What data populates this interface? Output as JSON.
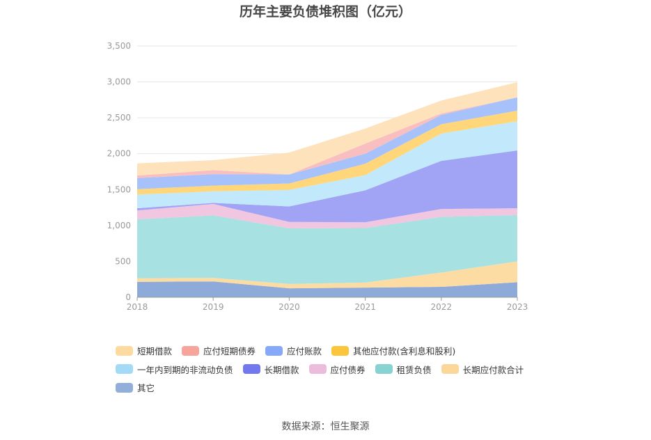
{
  "chart_data": {
    "type": "area",
    "stacked": true,
    "title": "历年主要负债堆积图（亿元）",
    "source": "数据来源：恒生聚源",
    "categories": [
      "2018",
      "2019",
      "2020",
      "2021",
      "2022",
      "2023"
    ],
    "ylim": [
      0,
      3500
    ],
    "yticks": [
      0,
      500,
      1000,
      1500,
      2000,
      2500,
      3000,
      3500
    ],
    "ytick_labels": [
      "0",
      "500",
      "1,000",
      "1,500",
      "2,000",
      "2,500",
      "3,000",
      "3,500"
    ],
    "grid": true,
    "legend_position": "bottom",
    "series": [
      {
        "name": "其它",
        "color": "#8eaad8",
        "values": [
          215,
          220,
          125,
          135,
          145,
          210
        ]
      },
      {
        "name": "长期应付款合计",
        "color": "#fcdca2",
        "values": [
          50,
          50,
          60,
          70,
          200,
          290
        ]
      },
      {
        "name": "租赁负债",
        "color": "#a8e1e1",
        "values": [
          820,
          870,
          775,
          760,
          775,
          645
        ]
      },
      {
        "name": "应付债券",
        "color": "#f0c6e0",
        "values": [
          125,
          160,
          90,
          80,
          110,
          95
        ]
      },
      {
        "name": "长期借款",
        "color": "#a1a4f4",
        "values": [
          30,
          15,
          215,
          445,
          670,
          805
        ]
      },
      {
        "name": "一年内到期的非流动负债",
        "color": "#c2e9fb",
        "values": [
          190,
          160,
          230,
          210,
          380,
          405
        ]
      },
      {
        "name": "其他应付款(含利息和股利)",
        "color": "#ffd77a",
        "values": [
          75,
          80,
          90,
          160,
          130,
          150
        ]
      },
      {
        "name": "应付账款",
        "color": "#a7c1fa",
        "values": [
          155,
          160,
          125,
          140,
          130,
          185
        ]
      },
      {
        "name": "应付短期债券",
        "color": "#f9bec0",
        "values": [
          35,
          55,
          0,
          140,
          20,
          0
        ]
      },
      {
        "name": "短期借款",
        "color": "#fde2bb",
        "values": [
          170,
          140,
          305,
          210,
          180,
          210
        ]
      }
    ],
    "legend_order": [
      "短期借款",
      "应付短期债券",
      "应付账款",
      "其他应付款(含利息和股利)",
      "一年内到期的非流动负债",
      "长期借款",
      "应付债券",
      "租赁负债",
      "长期应付款合计",
      "其它"
    ],
    "legend_swatch_colors": {
      "短期借款": "#fddba0",
      "应付短期债券": "#f7a59a",
      "应付账款": "#86a8f9",
      "其他应付款(含利息和股利)": "#fbc53c",
      "一年内到期的非流动负债": "#a3dbf7",
      "长期借款": "#7378ee",
      "应付债券": "#ebbcdc",
      "租赁负债": "#86d3d2",
      "长期应付款合计": "#fbd79a",
      "其它": "#92afda"
    },
    "axis_color": "#999999",
    "tick_label_color": "#999999",
    "grid_color": "#e6e6e6"
  }
}
